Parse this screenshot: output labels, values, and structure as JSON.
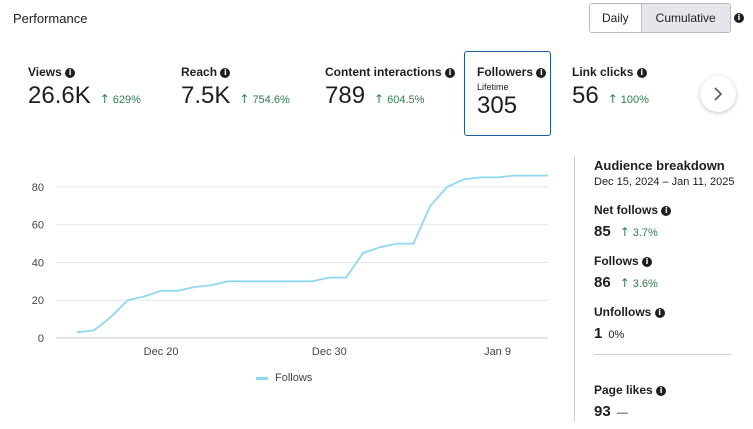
{
  "header": {
    "title": "Performance"
  },
  "toggle": {
    "daily": "Daily",
    "cumulative": "Cumulative",
    "selected": "Cumulative"
  },
  "metrics": [
    {
      "label": "Views",
      "value": "26.6K",
      "change": "629%"
    },
    {
      "label": "Reach",
      "value": "7.5K",
      "change": "754.6%"
    },
    {
      "label": "Content interactions",
      "value": "789",
      "change": "604.5%"
    },
    {
      "label": "Followers",
      "sub": "Lifetime",
      "value": "305"
    },
    {
      "label": "Link clicks",
      "value": "56",
      "change": "100%"
    }
  ],
  "nav": {
    "next_icon": "chevron-right-icon"
  },
  "chart_data": {
    "type": "line",
    "series": [
      {
        "name": "Follows",
        "color": "#8ed8f0",
        "values": [
          3,
          4,
          11,
          20,
          22,
          25,
          25,
          27,
          28,
          30,
          30,
          30,
          30,
          30,
          30,
          32,
          32,
          45,
          48,
          50,
          50,
          70,
          80,
          84,
          85,
          85,
          86,
          86,
          86
        ]
      }
    ],
    "x": [
      "Dec 15",
      "Dec 16",
      "Dec 17",
      "Dec 18",
      "Dec 19",
      "Dec 20",
      "Dec 21",
      "Dec 22",
      "Dec 23",
      "Dec 24",
      "Dec 25",
      "Dec 26",
      "Dec 27",
      "Dec 28",
      "Dec 29",
      "Dec 30",
      "Dec 31",
      "Jan 1",
      "Jan 2",
      "Jan 3",
      "Jan 4",
      "Jan 5",
      "Jan 6",
      "Jan 7",
      "Jan 8",
      "Jan 9",
      "Jan 10",
      "Jan 11",
      "Jan 12"
    ],
    "x_ticks": [
      "Dec 20",
      "Dec 30",
      "Jan 9"
    ],
    "y_ticks": [
      0,
      20,
      40,
      60,
      80
    ],
    "ylim": [
      0,
      90
    ],
    "grid": true,
    "legend": "Follows",
    "title": "",
    "xlabel": "",
    "ylabel": ""
  },
  "sidebar": {
    "title": "Audience breakdown",
    "date_range": "Dec 15, 2024 – Jan 11, 2025",
    "net_follows": {
      "label": "Net follows",
      "value": "85",
      "change": "3.7%"
    },
    "follows": {
      "label": "Follows",
      "value": "86",
      "change": "3.6%"
    },
    "unfollows": {
      "label": "Unfollows",
      "value": "1",
      "change": "0%"
    },
    "page_likes": {
      "label": "Page likes",
      "value": "93",
      "change": "—"
    }
  },
  "colors": {
    "accent": "#1b5c9c",
    "positive": "#2e7d4f",
    "line": "#8ed8f0"
  }
}
